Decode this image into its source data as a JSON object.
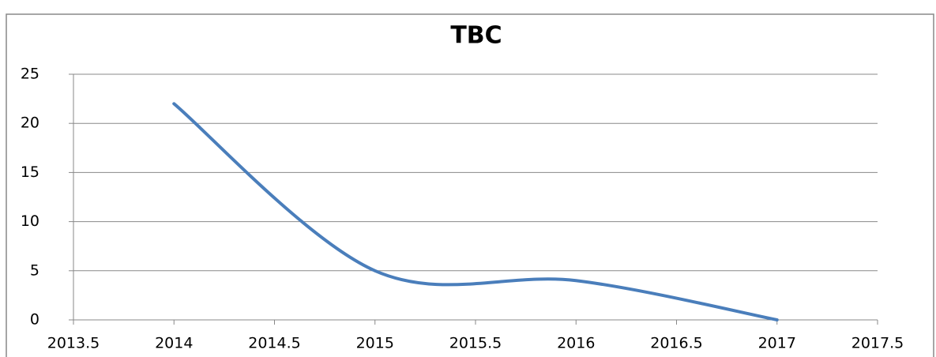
{
  "chart_data": {
    "type": "line",
    "title": "TBC",
    "x": [
      2014,
      2015,
      2016,
      2017
    ],
    "series": [
      {
        "name": "TBC",
        "color": "#4a7ebb",
        "values": [
          22,
          5,
          4,
          0
        ]
      }
    ],
    "xlim": [
      2013.5,
      2017.5
    ],
    "xticks": [
      2013.5,
      2014,
      2014.5,
      2015,
      2015.5,
      2016,
      2016.5,
      2017,
      2017.5
    ],
    "ylim": [
      0,
      25
    ],
    "yticks": [
      0,
      5,
      10,
      15,
      20,
      25
    ],
    "grid": true,
    "smooth": true
  }
}
